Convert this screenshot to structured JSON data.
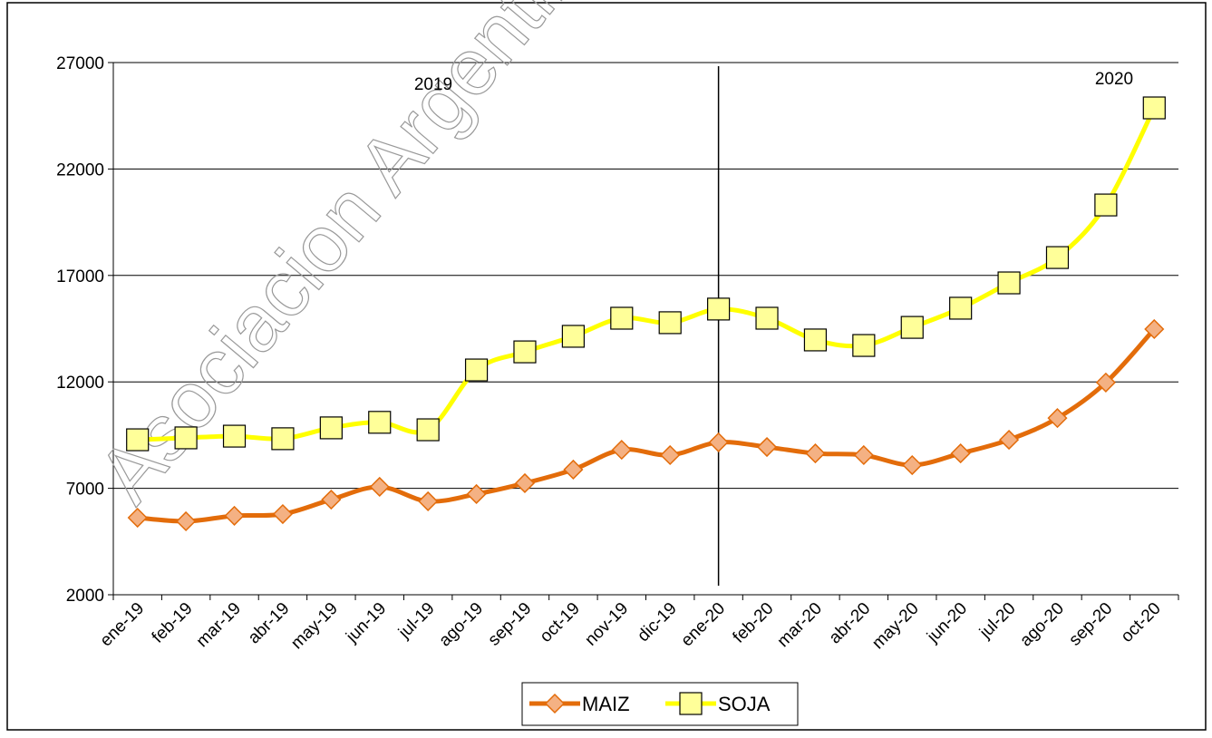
{
  "chart_data": {
    "type": "line",
    "annotations": [
      "2019",
      "2020"
    ],
    "watermark": "Asociacion Argentina",
    "categories": [
      "ene-19",
      "feb-19",
      "mar-19",
      "abr-19",
      "may-19",
      "jun-19",
      "jul-19",
      "ago-19",
      "sep-19",
      "oct-19",
      "nov-19",
      "dic-19",
      "ene-20",
      "feb-20",
      "mar-20",
      "abr-20",
      "may-20",
      "jun-20",
      "jul-20",
      "ago-20",
      "sep-20",
      "oct-20"
    ],
    "series": [
      {
        "name": "MAIZ",
        "color": "#e36c0a",
        "marker_fill": "#f4b183",
        "marker": "diamond",
        "values": [
          5620,
          5450,
          5710,
          5790,
          6470,
          7070,
          6390,
          6730,
          7240,
          7880,
          8810,
          8560,
          9160,
          8940,
          8640,
          8560,
          8090,
          8640,
          9280,
          10300,
          11970,
          14480
        ]
      },
      {
        "name": "SOJA",
        "color": "#ffff00",
        "marker_fill": "#ffff99",
        "marker": "square",
        "values": [
          9280,
          9370,
          9450,
          9330,
          9840,
          10100,
          9750,
          12560,
          13410,
          14140,
          14990,
          14780,
          15420,
          14990,
          13970,
          13710,
          14560,
          15460,
          16650,
          17840,
          20310,
          24870
        ]
      }
    ],
    "ylim": [
      2000,
      27000
    ],
    "yticks": [
      2000,
      7000,
      12000,
      17000,
      22000,
      27000
    ],
    "grid": true,
    "legend": "bottom"
  }
}
